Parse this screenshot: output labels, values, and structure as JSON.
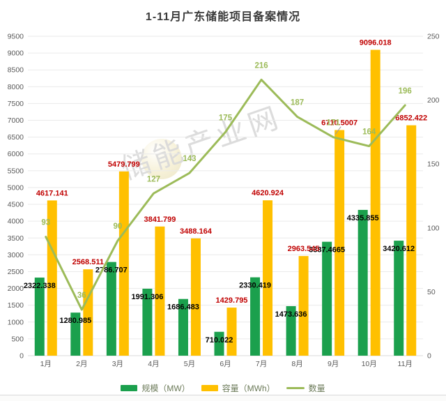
{
  "title": "1-11月广东储能项目备案情况",
  "watermark": {
    "text": "储能产业网",
    "icon": "globe-icon"
  },
  "axes_text_color": "#595959",
  "grid_color": "#eaeaea",
  "axis_line_color": "#d9d9d9",
  "legend_text_color": "#6b7a58",
  "chart_data": {
    "type": "combo-bar-line",
    "title": "1-11月广东储能项目备案情况",
    "categories": [
      "1月",
      "2月",
      "3月",
      "4月",
      "5月",
      "6月",
      "7月",
      "8月",
      "9月",
      "10月",
      "11月"
    ],
    "series": [
      {
        "name": "规模（MW）",
        "slug": "scale",
        "type": "bar",
        "axis": "left",
        "color": "#1BA04D",
        "label_color": "#000000",
        "values": [
          2322.338,
          1280.985,
          2786.707,
          1991.306,
          1686.483,
          710.022,
          2330.419,
          1473.636,
          3387.4665,
          4335.855,
          3420.612
        ]
      },
      {
        "name": "容量（MWh）",
        "slug": "capacity",
        "type": "bar",
        "axis": "left",
        "color": "#FFC000",
        "label_color": "#C00000",
        "values": [
          4617.141,
          2568.511,
          5479.799,
          3841.799,
          3488.164,
          1429.795,
          4620.924,
          2963.545,
          6710.5007,
          9096.018,
          6852.422
        ]
      },
      {
        "name": "数量",
        "slug": "count",
        "type": "line",
        "axis": "right",
        "color": "#9CBB59",
        "label_color": "#9CBB59",
        "values": [
          93,
          36,
          90,
          127,
          143,
          175,
          216,
          187,
          171,
          164,
          196
        ]
      }
    ],
    "left_axis": {
      "min": 0,
      "max": 9500,
      "step": 500
    },
    "right_axis": {
      "min": 0,
      "max": 250,
      "step": 50
    },
    "grid": true,
    "legend_position": "bottom"
  }
}
